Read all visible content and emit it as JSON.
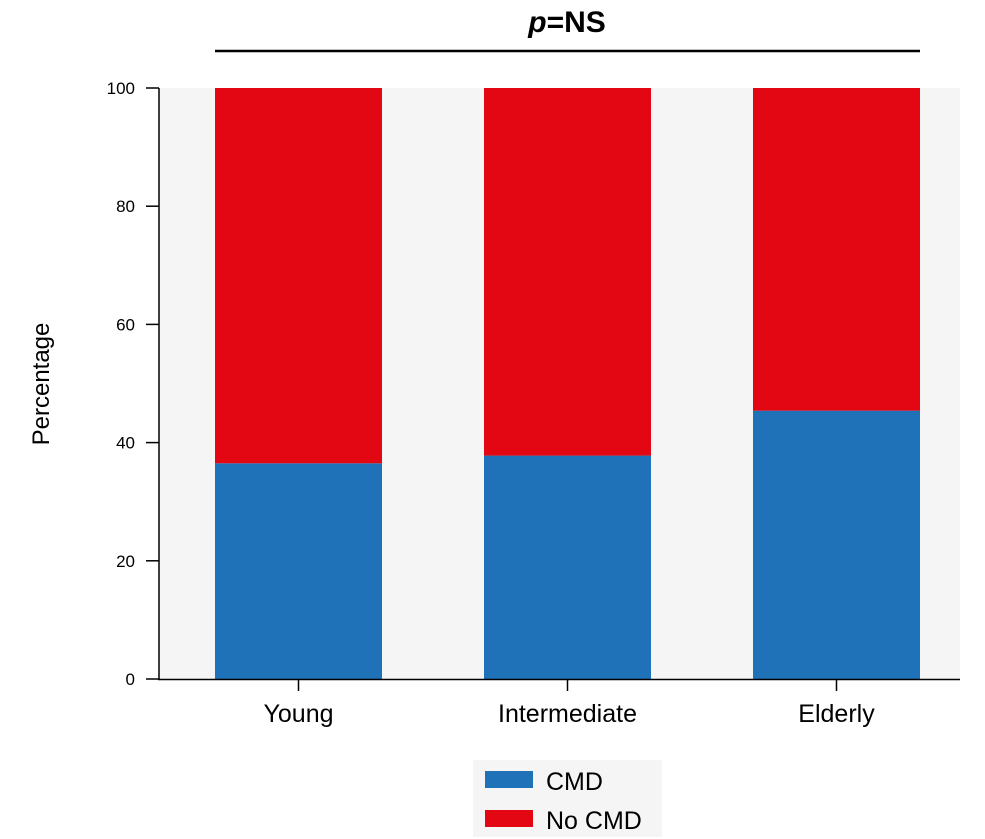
{
  "chart_data": {
    "type": "bar",
    "stacked": true,
    "categories": [
      "Young",
      "Intermediate",
      "Elderly"
    ],
    "series": [
      {
        "name": "CMD",
        "color": "#1f71b8",
        "values": [
          36.5,
          37.8,
          45.4
        ]
      },
      {
        "name": "No CMD",
        "color": "#e30613",
        "values": [
          63.5,
          62.2,
          54.6
        ]
      }
    ],
    "ylabel": "Percentage",
    "xlabel": "",
    "ylim": [
      0,
      100
    ],
    "yticks": [
      0,
      20,
      40,
      60,
      80,
      100
    ],
    "grid": false,
    "plot_background": "#f5f5f5",
    "annotation": {
      "italic": "p",
      "text": "=NS"
    },
    "legend": "bottom-center"
  }
}
